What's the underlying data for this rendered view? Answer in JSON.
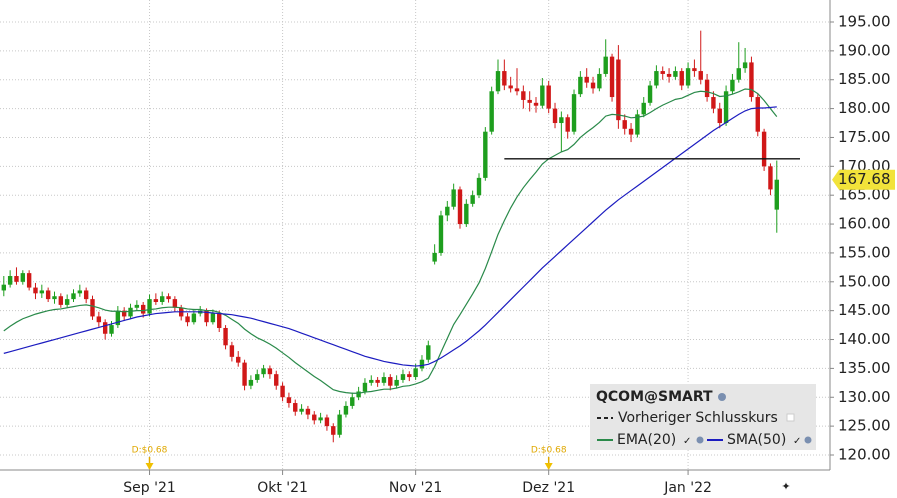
{
  "chart_data": {
    "type": "candlestick",
    "legend_title": "QCOM@SMART",
    "ylim": [
      117.4,
      198.81
    ],
    "yticks": [
      {
        "value": 120,
        "label": "120.00"
      },
      {
        "value": 125,
        "label": "125.00"
      },
      {
        "value": 130,
        "label": "130.00"
      },
      {
        "value": 135,
        "label": "135.00"
      },
      {
        "value": 140,
        "label": "140.00"
      },
      {
        "value": 145,
        "label": "145.00"
      },
      {
        "value": 150,
        "label": "150.00"
      },
      {
        "value": 155,
        "label": "155.00"
      },
      {
        "value": 160,
        "label": "160.00"
      },
      {
        "value": 165,
        "label": "165.00"
      },
      {
        "value": 170,
        "label": "170.00"
      },
      {
        "value": 175,
        "label": "175.00"
      },
      {
        "value": 180,
        "label": "180.00"
      },
      {
        "value": 185,
        "label": "185.00"
      },
      {
        "value": 190,
        "label": "190.00"
      },
      {
        "value": 195,
        "label": "195.00"
      }
    ],
    "xlim": [
      -0.6,
      130.4
    ],
    "xticks": [
      {
        "value": 23,
        "label": "Sep '21"
      },
      {
        "value": 44,
        "label": "Okt '21"
      },
      {
        "value": 65,
        "label": "Nov '21"
      },
      {
        "value": 86,
        "label": "Dez '21"
      },
      {
        "value": 108,
        "label": "Jan '22"
      }
    ],
    "grid": true,
    "up_color": "#1e9e1e",
    "down_color": "#d01818",
    "ohlc": [
      [
        148.5,
        151,
        147.5,
        149.5
      ],
      [
        149.5,
        152,
        149,
        151
      ],
      [
        151,
        152.5,
        149.5,
        150
      ],
      [
        150,
        152,
        149.5,
        151.5
      ],
      [
        151.5,
        152,
        148.5,
        149
      ],
      [
        149,
        149.8,
        147,
        148
      ],
      [
        148,
        149.5,
        147.2,
        148.5
      ],
      [
        148.5,
        149,
        146.5,
        147
      ],
      [
        147,
        148.3,
        146.2,
        147.5
      ],
      [
        147.5,
        148,
        145.5,
        146
      ],
      [
        146,
        147.8,
        145.6,
        147
      ],
      [
        147,
        148.7,
        146.5,
        148
      ],
      [
        148,
        149.5,
        147.4,
        148.5
      ],
      [
        148.5,
        149,
        146.3,
        147
      ],
      [
        147,
        147.6,
        143.4,
        144
      ],
      [
        144,
        144.8,
        142.2,
        143
      ],
      [
        143,
        143.5,
        140,
        141
      ],
      [
        141,
        143.2,
        140.5,
        142.5
      ],
      [
        142.5,
        145.8,
        142,
        145
      ],
      [
        145,
        145.6,
        143.2,
        144
      ],
      [
        144,
        146.2,
        143.5,
        145.5
      ],
      [
        145.5,
        146.8,
        145,
        146
      ],
      [
        146,
        146.5,
        143.8,
        144.5
      ],
      [
        144.5,
        147.8,
        144,
        147
      ],
      [
        147,
        148,
        146,
        146.5
      ],
      [
        146.5,
        148.3,
        146,
        147.5
      ],
      [
        147.5,
        148,
        146.4,
        147
      ],
      [
        147,
        147.5,
        144.8,
        145.5
      ],
      [
        145.5,
        146,
        143.3,
        144
      ],
      [
        144,
        144.6,
        142.3,
        143
      ],
      [
        143,
        145.3,
        142.6,
        144.5
      ],
      [
        144.5,
        145.8,
        144,
        145
      ],
      [
        145,
        145.4,
        142.3,
        143
      ],
      [
        143,
        145.2,
        142.6,
        144.5
      ],
      [
        144.5,
        145,
        141.3,
        142
      ],
      [
        142,
        142.5,
        138.3,
        139
      ],
      [
        139,
        139.6,
        136.2,
        137
      ],
      [
        137,
        138,
        135.3,
        136
      ],
      [
        136,
        136.5,
        131.2,
        132
      ],
      [
        132,
        133.8,
        131.4,
        133
      ],
      [
        133,
        134.8,
        132.5,
        134
      ],
      [
        134,
        135.6,
        133.4,
        135
      ],
      [
        135,
        135.5,
        133.2,
        134
      ],
      [
        134,
        134.6,
        131.3,
        132
      ],
      [
        132,
        132.6,
        129.3,
        130
      ],
      [
        130,
        130.8,
        128.2,
        129
      ],
      [
        129,
        129.6,
        126.8,
        127.5
      ],
      [
        127.5,
        128.8,
        127,
        128
      ],
      [
        128,
        128.5,
        126.2,
        127
      ],
      [
        127,
        127.6,
        125.3,
        126
      ],
      [
        126,
        127.3,
        125.5,
        126.5
      ],
      [
        126.5,
        127,
        124.2,
        125
      ],
      [
        125,
        125.5,
        122.2,
        123.5
      ],
      [
        123.5,
        127.8,
        123,
        127
      ],
      [
        127,
        129.3,
        126.5,
        128.5
      ],
      [
        128.5,
        130.8,
        128,
        130
      ],
      [
        130,
        131.8,
        129.5,
        131
      ],
      [
        131,
        133.3,
        130.5,
        132.5
      ],
      [
        132.5,
        133.8,
        132,
        133
      ],
      [
        133,
        133.5,
        131.8,
        132.5
      ],
      [
        132.5,
        134.3,
        132,
        133.5
      ],
      [
        133.5,
        134,
        131.2,
        132
      ],
      [
        132,
        133.8,
        131.5,
        133
      ],
      [
        133,
        134.8,
        132.5,
        134
      ],
      [
        134,
        134.5,
        132.8,
        133.5
      ],
      [
        133.5,
        135.8,
        133,
        135
      ],
      [
        135,
        137.3,
        134.5,
        136.5
      ],
      [
        136.5,
        139.8,
        136,
        139
      ],
      [
        153.5,
        156.5,
        153,
        155
      ],
      [
        155,
        162.3,
        154.5,
        161.5
      ],
      [
        161.5,
        164,
        160.5,
        163
      ],
      [
        163,
        167,
        162.5,
        166
      ],
      [
        166,
        166.5,
        159.2,
        160
      ],
      [
        160,
        164.3,
        159.5,
        163.5
      ],
      [
        163.5,
        165.8,
        163,
        165
      ],
      [
        165,
        168.8,
        164.5,
        168
      ],
      [
        168,
        176.8,
        167.5,
        176
      ],
      [
        176,
        183.8,
        175.5,
        183
      ],
      [
        183,
        188.5,
        182.5,
        186.5
      ],
      [
        186.5,
        188.5,
        183.2,
        184
      ],
      [
        184,
        185.5,
        182.8,
        183.5
      ],
      [
        183.5,
        187,
        182.3,
        183
      ],
      [
        183,
        184,
        180,
        181.5
      ],
      [
        181.5,
        183,
        179.5,
        181
      ],
      [
        181,
        182,
        179.3,
        180.5
      ],
      [
        180.5,
        185.3,
        180,
        184
      ],
      [
        184,
        184.8,
        179.2,
        180
      ],
      [
        180,
        181,
        176.6,
        177.5
      ],
      [
        177.5,
        179.5,
        172.5,
        178.5
      ],
      [
        178.5,
        179,
        174.8,
        176
      ],
      [
        176,
        183.3,
        175.5,
        182.5
      ],
      [
        182.5,
        186.5,
        182,
        185.5
      ],
      [
        185.5,
        187,
        183.6,
        184.5
      ],
      [
        184.5,
        185.5,
        182.6,
        183.5
      ],
      [
        183.5,
        187,
        183,
        186
      ],
      [
        186,
        192,
        185.5,
        189
      ],
      [
        189,
        189.5,
        181.2,
        182
      ],
      [
        188.5,
        191,
        176.5,
        178
      ],
      [
        178,
        179,
        175.5,
        176.5
      ],
      [
        176.5,
        177.5,
        174.2,
        175.5
      ],
      [
        175.5,
        179.8,
        175,
        179
      ],
      [
        179,
        182,
        178.5,
        181
      ],
      [
        181,
        184.8,
        180.5,
        184
      ],
      [
        184,
        187.5,
        183.5,
        186.5
      ],
      [
        186.5,
        187.3,
        185,
        186
      ],
      [
        186,
        187,
        184.5,
        185.5
      ],
      [
        185.5,
        187.3,
        185,
        186.5
      ],
      [
        186.5,
        187,
        183.2,
        184
      ],
      [
        184,
        188,
        183.5,
        187
      ],
      [
        187,
        188.5,
        185.5,
        186.5
      ],
      [
        186.5,
        193.5,
        184.2,
        185
      ],
      [
        185,
        186,
        181.2,
        182
      ],
      [
        182,
        183,
        179.2,
        180
      ],
      [
        180,
        181,
        176.6,
        177.5
      ],
      [
        177.5,
        184,
        177,
        183
      ],
      [
        183,
        186,
        182.5,
        185
      ],
      [
        185,
        191.5,
        184.5,
        187
      ],
      [
        187,
        190.5,
        186.2,
        188
      ],
      [
        188,
        189,
        181.2,
        182
      ],
      [
        182,
        182.5,
        175.2,
        176
      ],
      [
        176,
        176.5,
        169.2,
        170
      ],
      [
        170,
        170.5,
        165,
        166
      ],
      [
        162.5,
        171,
        158.5,
        167.68
      ]
    ],
    "series": [
      {
        "name": "EMA(20)",
        "color": "#2a8a4a",
        "values": [
          141.5,
          142.3,
          143,
          143.6,
          144,
          144.4,
          144.7,
          145,
          145.2,
          145.3,
          145.5,
          145.7,
          145.9,
          146,
          145.8,
          145.5,
          145.1,
          144.9,
          144.9,
          144.8,
          144.9,
          145,
          145,
          145.2,
          145.3,
          145.5,
          145.6,
          145.6,
          145.5,
          145.3,
          145.2,
          145.2,
          145,
          145,
          144.7,
          144.2,
          143.5,
          142.8,
          141.8,
          141,
          140.3,
          139.8,
          139.2,
          138.5,
          137.7,
          136.9,
          136,
          135.2,
          134.4,
          133.6,
          132.9,
          132.1,
          131.3,
          131,
          130.8,
          130.7,
          130.7,
          130.9,
          131,
          131.2,
          131.4,
          131.4,
          131.6,
          131.9,
          132,
          132.3,
          132.7,
          133.3,
          135.3,
          137.8,
          140.2,
          142.6,
          144.3,
          146.1,
          147.9,
          149.8,
          152.3,
          155.2,
          158.2,
          160.6,
          162.8,
          164.7,
          166.3,
          167.7,
          169,
          170.4,
          171.3,
          171.9,
          172.5,
          172.9,
          173.8,
          175,
          175.9,
          176.7,
          177.6,
          178.7,
          179,
          178.9,
          178.7,
          178.4,
          178.5,
          178.7,
          179.3,
          180,
          180.6,
          181.1,
          181.6,
          181.8,
          182.3,
          182.8,
          183,
          182.9,
          182.6,
          182.1,
          182.2,
          182.5,
          182.9,
          183.4,
          183.3,
          182.6,
          181.4,
          180,
          178.6
        ]
      },
      {
        "name": "SMA(50)",
        "color": "#1c1cc0",
        "values": [
          137.6,
          137.9,
          138.2,
          138.5,
          138.8,
          139.1,
          139.4,
          139.7,
          140,
          140.3,
          140.6,
          140.9,
          141.2,
          141.5,
          141.8,
          142.1,
          142.4,
          142.7,
          143,
          143.3,
          143.6,
          143.9,
          144.1,
          144.3,
          144.5,
          144.6,
          144.7,
          144.8,
          144.8,
          144.8,
          144.8,
          144.8,
          144.7,
          144.6,
          144.5,
          144.4,
          144.3,
          144.1,
          143.9,
          143.7,
          143.4,
          143.1,
          142.8,
          142.5,
          142.2,
          141.9,
          141.5,
          141.1,
          140.7,
          140.3,
          139.9,
          139.5,
          139.1,
          138.7,
          138.3,
          137.9,
          137.5,
          137.1,
          136.8,
          136.5,
          136.2,
          136,
          135.8,
          135.6,
          135.5,
          135.4,
          135.5,
          135.7,
          136.2,
          136.8,
          137.5,
          138.2,
          138.9,
          139.7,
          140.6,
          141.5,
          142.5,
          143.6,
          144.7,
          145.8,
          146.9,
          148,
          149.1,
          150.2,
          151.3,
          152.4,
          153.4,
          154.4,
          155.4,
          156.4,
          157.4,
          158.4,
          159.4,
          160.4,
          161.4,
          162.4,
          163.3,
          164.2,
          165,
          165.8,
          166.6,
          167.4,
          168.2,
          169,
          169.8,
          170.6,
          171.4,
          172.2,
          173,
          173.8,
          174.6,
          175.4,
          176.2,
          176.9,
          177.6,
          178.3,
          179,
          179.6,
          180,
          180.1,
          180.1,
          180.2,
          180.3
        ]
      }
    ],
    "prev_close": {
      "name": "Vorheriger Schlusskurs",
      "value": 171.3
    },
    "annotations": [
      {
        "text": "D:$0.68",
        "x": 23
      },
      {
        "text": "D:$0.68",
        "x": 86
      }
    ]
  }
}
